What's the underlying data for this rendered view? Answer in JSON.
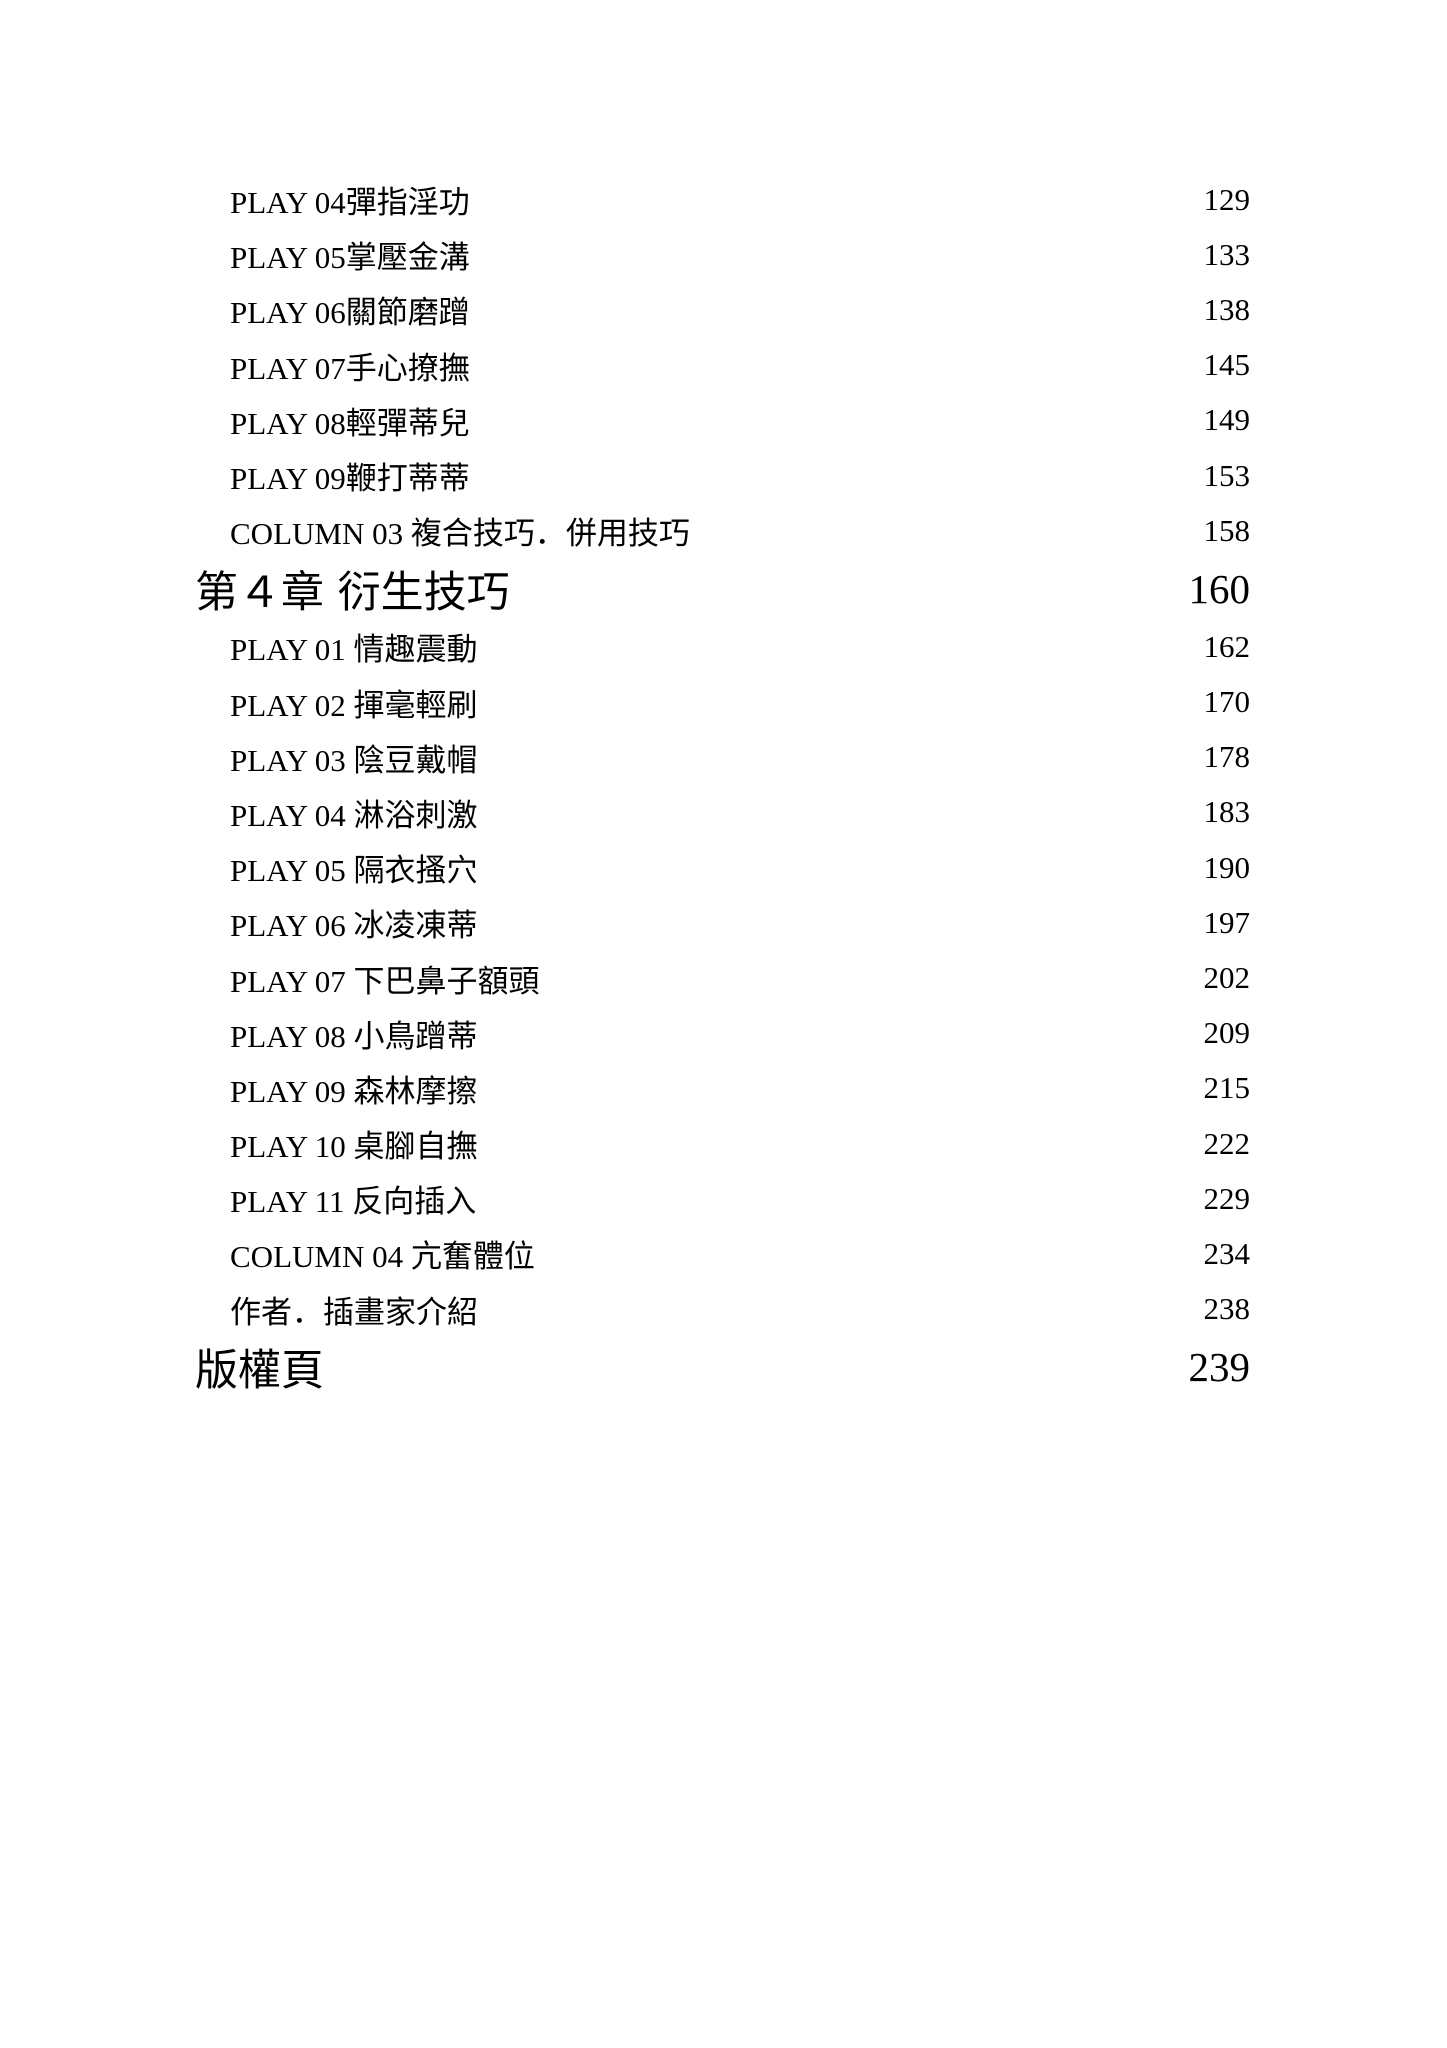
{
  "toc": [
    {
      "level": "sub",
      "title": "PLAY 04彈指淫功",
      "page": "129"
    },
    {
      "level": "sub",
      "title": "PLAY 05掌壓金溝",
      "page": "133"
    },
    {
      "level": "sub",
      "title": "PLAY 06關節磨蹭",
      "page": "138"
    },
    {
      "level": "sub",
      "title": "PLAY 07手心撩撫",
      "page": "145"
    },
    {
      "level": "sub",
      "title": "PLAY 08輕彈蒂兒",
      "page": "149"
    },
    {
      "level": "sub",
      "title": "PLAY 09鞭打蒂蒂",
      "page": "153"
    },
    {
      "level": "sub",
      "title": "COLUMN 03 複合技巧．併用技巧",
      "page": "158"
    },
    {
      "level": "chapter",
      "title": "第４章 衍生技巧",
      "page": "160"
    },
    {
      "level": "sub",
      "title": "PLAY 01 情趣震動",
      "page": "162"
    },
    {
      "level": "sub",
      "title": "PLAY 02 揮毫輕刷",
      "page": "170"
    },
    {
      "level": "sub",
      "title": "PLAY 03 陰豆戴帽",
      "page": "178"
    },
    {
      "level": "sub",
      "title": "PLAY 04 淋浴刺激",
      "page": "183"
    },
    {
      "level": "sub",
      "title": "PLAY 05 隔衣搔穴",
      "page": "190"
    },
    {
      "level": "sub",
      "title": "PLAY 06 冰凌凍蒂",
      "page": "197"
    },
    {
      "level": "sub",
      "title": "PLAY 07 下巴鼻子額頭",
      "page": "202"
    },
    {
      "level": "sub",
      "title": "PLAY 08 小鳥蹭蒂",
      "page": "209"
    },
    {
      "level": "sub",
      "title": "PLAY 09 森林摩擦",
      "page": "215"
    },
    {
      "level": "sub",
      "title": "PLAY 10 桌腳自撫",
      "page": "222"
    },
    {
      "level": "sub",
      "title": "PLAY 11 反向插入",
      "page": "229"
    },
    {
      "level": "sub",
      "title": "COLUMN 04 亢奮體位",
      "page": "234"
    },
    {
      "level": "sub",
      "title": "作者．插畫家介紹",
      "page": "238"
    },
    {
      "level": "chapter",
      "title": "版權頁",
      "page": "239"
    }
  ]
}
